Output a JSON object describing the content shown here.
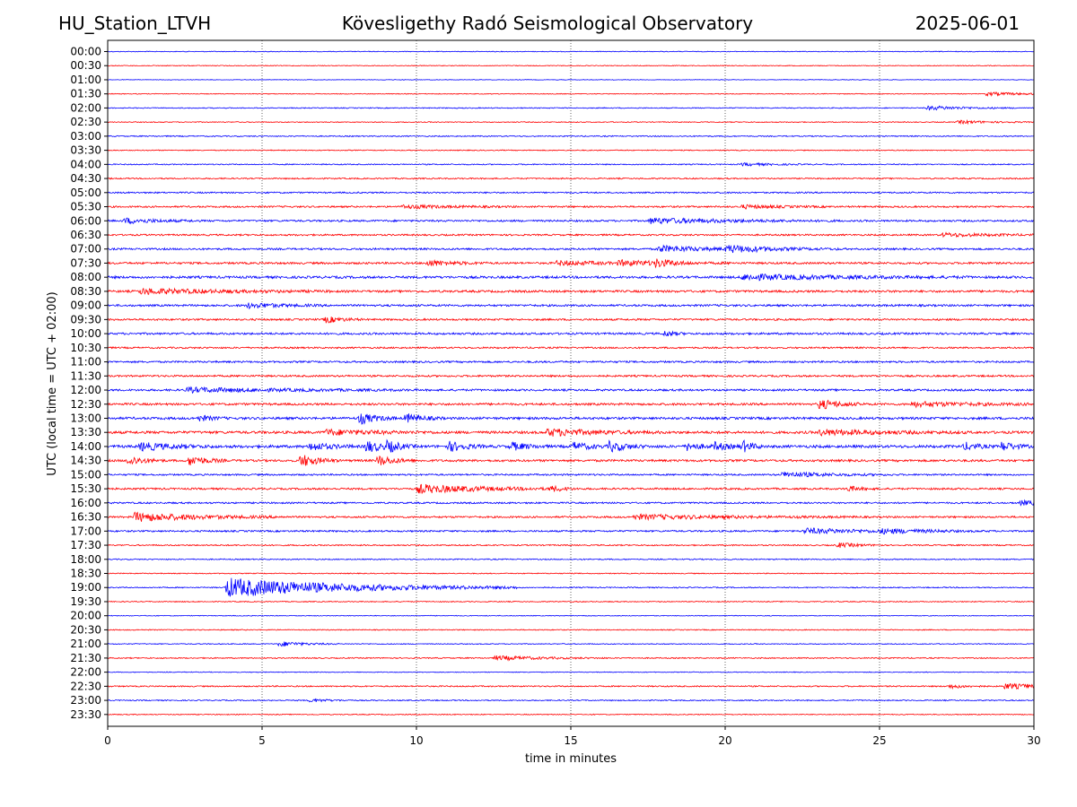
{
  "header": {
    "station": "HU_Station_LTVH",
    "title": "Kövesligethy Radó Seismological Observatory",
    "date": "2025-06-01"
  },
  "chart_data": {
    "type": "line",
    "title": "Kövesligethy Radó Seismological Observatory",
    "xlabel": "time in minutes",
    "ylabel": "UTC (local time = UTC + 02:00)",
    "xlim": [
      0,
      30
    ],
    "x_ticks": [
      0,
      5,
      10,
      15,
      20,
      25,
      30
    ],
    "x_grid": "dotted vertical lines at 5-minute ticks",
    "colors": {
      "even_hour": "#0000ff",
      "half_hour": "#ff0000",
      "grid": "#000000"
    },
    "rows": [
      "00:00",
      "00:30",
      "01:00",
      "01:30",
      "02:00",
      "02:30",
      "03:00",
      "03:30",
      "04:00",
      "04:30",
      "05:00",
      "05:30",
      "06:00",
      "06:30",
      "07:00",
      "07:30",
      "08:00",
      "08:30",
      "09:00",
      "09:30",
      "10:00",
      "10:30",
      "11:00",
      "11:30",
      "12:00",
      "12:30",
      "13:00",
      "13:30",
      "14:00",
      "14:30",
      "15:00",
      "15:30",
      "16:00",
      "16:30",
      "17:00",
      "17:30",
      "18:00",
      "18:30",
      "19:00",
      "19:30",
      "20:00",
      "20:30",
      "21:00",
      "21:30",
      "22:00",
      "22:30",
      "23:00",
      "23:30"
    ],
    "noise_amplitude": [
      0.4,
      0.4,
      0.3,
      0.4,
      0.5,
      0.5,
      0.6,
      0.5,
      0.6,
      0.7,
      0.8,
      0.9,
      1.0,
      0.9,
      1.0,
      1.1,
      1.3,
      1.2,
      1.1,
      1.0,
      1.1,
      0.9,
      1.0,
      1.0,
      1.1,
      1.2,
      1.3,
      1.4,
      1.5,
      1.2,
      0.9,
      1.0,
      0.9,
      1.0,
      0.9,
      0.7,
      0.6,
      0.5,
      0.6,
      0.5,
      0.4,
      0.5,
      0.5,
      0.6,
      0.4,
      0.7,
      0.6,
      0.5
    ],
    "events": [
      {
        "row": "01:30",
        "minute": 28.4,
        "amplitude": 2.0,
        "duration": 1.2
      },
      {
        "row": "02:00",
        "minute": 26.5,
        "amplitude": 2.5,
        "duration": 1.2
      },
      {
        "row": "02:30",
        "minute": 27.5,
        "amplitude": 1.8,
        "duration": 1.0
      },
      {
        "row": "04:00",
        "minute": 20.5,
        "amplitude": 1.5,
        "duration": 1.0
      },
      {
        "row": "05:30",
        "minute": 9.5,
        "amplitude": 2.0,
        "duration": 1.5
      },
      {
        "row": "05:30",
        "minute": 20.5,
        "amplitude": 2.0,
        "duration": 1.2
      },
      {
        "row": "06:00",
        "minute": 0.5,
        "amplitude": 3.0,
        "duration": 1.0
      },
      {
        "row": "06:00",
        "minute": 17.5,
        "amplitude": 3.0,
        "duration": 2.5
      },
      {
        "row": "06:30",
        "minute": 27.0,
        "amplitude": 2.0,
        "duration": 1.5
      },
      {
        "row": "07:00",
        "minute": 17.8,
        "amplitude": 3.5,
        "duration": 1.5
      },
      {
        "row": "07:00",
        "minute": 20.0,
        "amplitude": 3.5,
        "duration": 1.5
      },
      {
        "row": "07:30",
        "minute": 10.3,
        "amplitude": 3.5,
        "duration": 0.8
      },
      {
        "row": "07:30",
        "minute": 14.5,
        "amplitude": 2.5,
        "duration": 1.5
      },
      {
        "row": "07:30",
        "minute": 16.5,
        "amplitude": 2.5,
        "duration": 1.5
      },
      {
        "row": "07:30",
        "minute": 17.7,
        "amplitude": 4.0,
        "duration": 0.5
      },
      {
        "row": "08:00",
        "minute": 20.5,
        "amplitude": 3.0,
        "duration": 3.0
      },
      {
        "row": "08:30",
        "minute": 1.0,
        "amplitude": 3.0,
        "duration": 2.5
      },
      {
        "row": "09:00",
        "minute": 4.5,
        "amplitude": 3.0,
        "duration": 1.0
      },
      {
        "row": "09:30",
        "minute": 7.0,
        "amplitude": 4.0,
        "duration": 0.5
      },
      {
        "row": "10:00",
        "minute": 18.0,
        "amplitude": 4.0,
        "duration": 0.3
      },
      {
        "row": "12:00",
        "minute": 2.5,
        "amplitude": 2.5,
        "duration": 3.0
      },
      {
        "row": "12:30",
        "minute": 23.0,
        "amplitude": 6.0,
        "duration": 0.6
      },
      {
        "row": "12:30",
        "minute": 26.0,
        "amplitude": 2.5,
        "duration": 2.0
      },
      {
        "row": "13:00",
        "minute": 8.1,
        "amplitude": 7.0,
        "duration": 0.5
      },
      {
        "row": "13:00",
        "minute": 9.6,
        "amplitude": 5.5,
        "duration": 0.5
      },
      {
        "row": "13:00",
        "minute": 2.9,
        "amplitude": 3.5,
        "duration": 0.4
      },
      {
        "row": "13:30",
        "minute": 14.2,
        "amplitude": 4.0,
        "duration": 1.5
      },
      {
        "row": "13:30",
        "minute": 7.0,
        "amplitude": 3.0,
        "duration": 1.5
      },
      {
        "row": "13:30",
        "minute": 23.0,
        "amplitude": 3.0,
        "duration": 2.0
      },
      {
        "row": "14:00",
        "minute": 8.3,
        "amplitude": 7.5,
        "duration": 0.5
      },
      {
        "row": "14:00",
        "minute": 9.0,
        "amplitude": 6.0,
        "duration": 0.4
      },
      {
        "row": "14:00",
        "minute": 11.0,
        "amplitude": 6.0,
        "duration": 0.5
      },
      {
        "row": "14:00",
        "minute": 13.0,
        "amplitude": 5.0,
        "duration": 0.5
      },
      {
        "row": "14:00",
        "minute": 15.0,
        "amplitude": 5.0,
        "duration": 0.5
      },
      {
        "row": "14:00",
        "minute": 16.2,
        "amplitude": 6.5,
        "duration": 0.5
      },
      {
        "row": "14:00",
        "minute": 18.7,
        "amplitude": 5.0,
        "duration": 0.4
      },
      {
        "row": "14:00",
        "minute": 19.6,
        "amplitude": 5.0,
        "duration": 0.4
      },
      {
        "row": "14:00",
        "minute": 20.5,
        "amplitude": 8.0,
        "duration": 0.3
      },
      {
        "row": "14:00",
        "minute": 27.7,
        "amplitude": 5.0,
        "duration": 0.4
      },
      {
        "row": "14:00",
        "minute": 28.9,
        "amplitude": 6.0,
        "duration": 0.4
      },
      {
        "row": "14:00",
        "minute": 6.5,
        "amplitude": 5.0,
        "duration": 0.6
      },
      {
        "row": "14:00",
        "minute": 1.0,
        "amplitude": 4.5,
        "duration": 1.0
      },
      {
        "row": "14:30",
        "minute": 0.6,
        "amplitude": 6.0,
        "duration": 0.5
      },
      {
        "row": "14:30",
        "minute": 2.6,
        "amplitude": 6.5,
        "duration": 0.5
      },
      {
        "row": "14:30",
        "minute": 6.2,
        "amplitude": 8.0,
        "duration": 0.5
      },
      {
        "row": "14:30",
        "minute": 8.7,
        "amplitude": 6.5,
        "duration": 0.5
      },
      {
        "row": "15:00",
        "minute": 21.8,
        "amplitude": 3.0,
        "duration": 1.5
      },
      {
        "row": "15:30",
        "minute": 10.0,
        "amplitude": 5.0,
        "duration": 2.0
      },
      {
        "row": "15:30",
        "minute": 14.3,
        "amplitude": 3.0,
        "duration": 0.4
      },
      {
        "row": "15:30",
        "minute": 23.9,
        "amplitude": 3.5,
        "duration": 0.4
      },
      {
        "row": "16:00",
        "minute": 29.5,
        "amplitude": 2.5,
        "duration": 1.0
      },
      {
        "row": "16:30",
        "minute": 0.8,
        "amplitude": 5.0,
        "duration": 2.0
      },
      {
        "row": "16:30",
        "minute": 17.0,
        "amplitude": 2.5,
        "duration": 3.0
      },
      {
        "row": "17:00",
        "minute": 22.5,
        "amplitude": 3.0,
        "duration": 2.0
      },
      {
        "row": "17:00",
        "minute": 25.0,
        "amplitude": 2.0,
        "duration": 1.5
      },
      {
        "row": "17:30",
        "minute": 23.6,
        "amplitude": 3.0,
        "duration": 0.6
      },
      {
        "row": "19:00",
        "minute": 3.8,
        "amplitude": 11.0,
        "duration": 3.8
      },
      {
        "row": "21:00",
        "minute": 5.5,
        "amplitude": 3.0,
        "duration": 0.8
      },
      {
        "row": "21:30",
        "minute": 12.5,
        "amplitude": 2.5,
        "duration": 1.5
      },
      {
        "row": "22:30",
        "minute": 29.0,
        "amplitude": 3.0,
        "duration": 1.5
      },
      {
        "row": "22:30",
        "minute": 27.2,
        "amplitude": 2.5,
        "duration": 0.5
      },
      {
        "row": "23:00",
        "minute": 6.5,
        "amplitude": 2.0,
        "duration": 0.6
      }
    ]
  }
}
